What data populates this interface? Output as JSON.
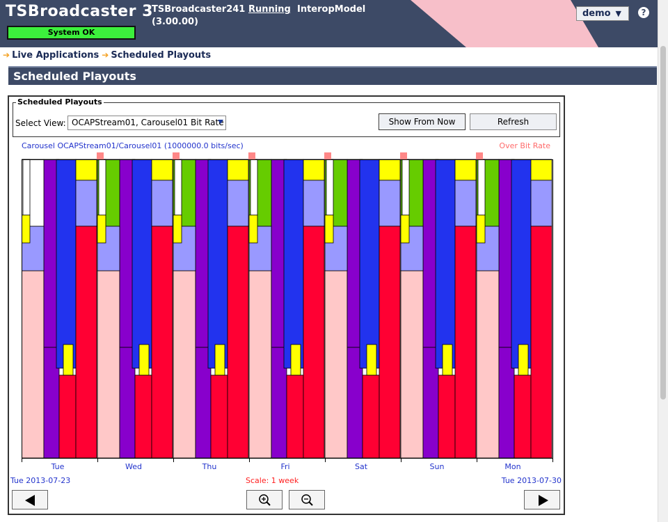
{
  "header": {
    "app_title": "TSBroadcaster 3",
    "system_status": "System OK",
    "server_name": "TSBroadcaster241",
    "server_version": "(3.00.00)",
    "server_state": "Running",
    "server_model": "InteropModel",
    "user_menu": "demo",
    "user_menu_arrow": "▼",
    "help_label": "?"
  },
  "breadcrumb": {
    "items": [
      "Live Applications",
      "Scheduled Playouts"
    ]
  },
  "section": {
    "title": "Scheduled Playouts"
  },
  "panel": {
    "legend": "Scheduled Playouts",
    "select_label": "Select View:",
    "selected_view": "OCAPStream01, Carousel01 Bit Rate",
    "show_from_now_label": "Show From Now",
    "refresh_label": "Refresh"
  },
  "chart_data": {
    "type": "area",
    "title": "Carousel OCAPStream01/Carousel01 (1000000.0 bits/sec)",
    "over_rate_label": "Over Bit Rate",
    "categories": [
      "Tue",
      "Wed",
      "Thu",
      "Fri",
      "Sat",
      "Sun",
      "Mon"
    ],
    "start_date": "Tue 2013-07-23",
    "end_date": "Tue 2013-07-30",
    "scale_label": "Scale: 1 week",
    "colors": {
      "pink": "#ffc8c8",
      "red": "#ff0033",
      "purple": "#8800cc",
      "blue": "#2233ee",
      "yellow": "#ffff00",
      "lavender": "#9999ff",
      "green": "#66cc00",
      "over": "#ff8888"
    }
  },
  "icons": {
    "prev": "left-arrow-icon",
    "next": "right-arrow-icon",
    "zoom_in": "zoom-in-icon",
    "zoom_out": "zoom-out-icon"
  }
}
